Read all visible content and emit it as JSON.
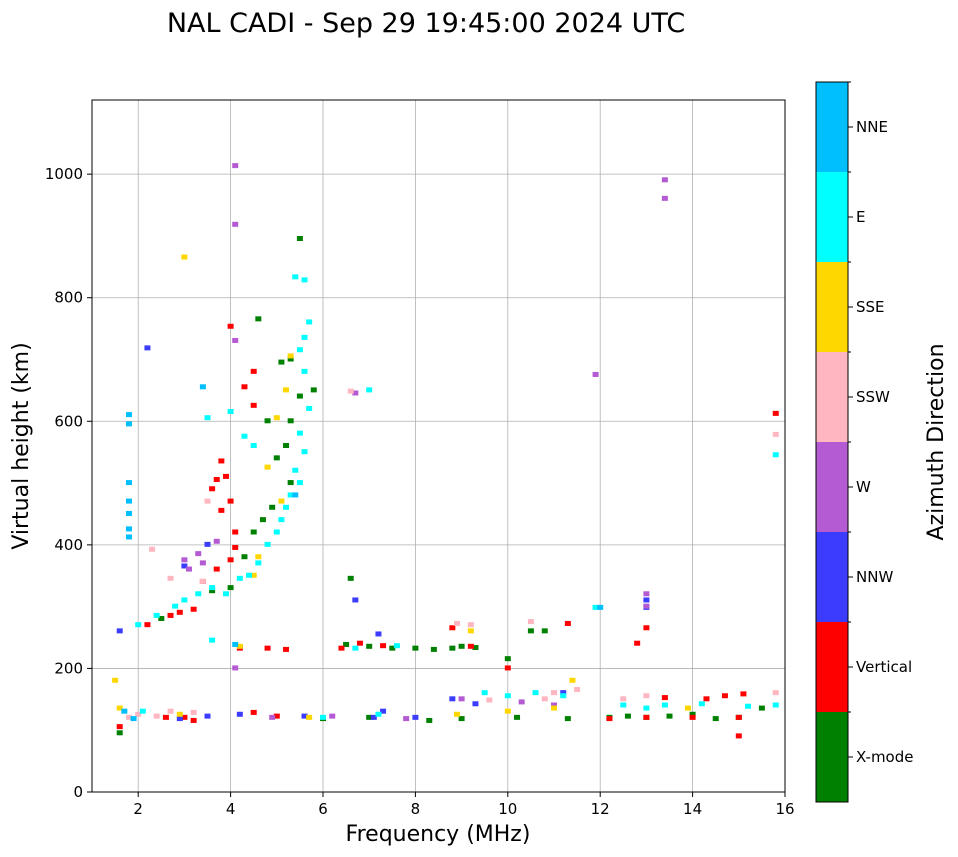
{
  "chart_data": {
    "type": "scatter",
    "title": "NAL CADI - Sep 29 19:45:00 2024 UTC",
    "xlabel": "Frequency (MHz)",
    "ylabel": "Virtual height (km)",
    "xlim": [
      1,
      16
    ],
    "ylim": [
      0,
      1120
    ],
    "xticks": [
      2,
      4,
      6,
      8,
      10,
      12,
      14,
      16
    ],
    "yticks": [
      0,
      200,
      400,
      600,
      800,
      1000
    ],
    "grid": true,
    "colorbar": {
      "title": "Azimuth Direction",
      "categories": [
        {
          "name": "X-mode",
          "color": "#008000"
        },
        {
          "name": "Vertical",
          "color": "#ff0000"
        },
        {
          "name": "NNW",
          "color": "#3c3cff"
        },
        {
          "name": "W",
          "color": "#b45ad2"
        },
        {
          "name": "SSW",
          "color": "#ffb6c1"
        },
        {
          "name": "SSE",
          "color": "#ffd700"
        },
        {
          "name": "E",
          "color": "#00ffff"
        },
        {
          "name": "NNE",
          "color": "#00bfff"
        }
      ]
    },
    "series": [
      {
        "name": "X-mode",
        "points": [
          [
            5.1,
            695
          ],
          [
            5.3,
            700
          ],
          [
            5.5,
            640
          ],
          [
            5.3,
            600
          ],
          [
            5.2,
            560
          ],
          [
            5.0,
            540
          ],
          [
            5.3,
            500
          ],
          [
            4.9,
            460
          ],
          [
            4.7,
            440
          ],
          [
            4.5,
            420
          ],
          [
            4.3,
            380
          ],
          [
            4.0,
            330
          ],
          [
            3.6,
            325
          ],
          [
            2.5,
            280
          ],
          [
            1.6,
            95
          ],
          [
            4.6,
            765
          ],
          [
            5.5,
            895
          ],
          [
            6.6,
            345
          ],
          [
            6.5,
            238
          ],
          [
            7.0,
            235
          ],
          [
            7.5,
            232
          ],
          [
            8.0,
            232
          ],
          [
            8.4,
            230
          ],
          [
            8.8,
            232
          ],
          [
            9.0,
            235
          ],
          [
            9.3,
            233
          ],
          [
            10.0,
            215
          ],
          [
            10.5,
            260
          ],
          [
            10.8,
            260
          ],
          [
            12.2,
            120
          ],
          [
            12.6,
            122
          ],
          [
            13.0,
            120
          ],
          [
            13.5,
            122
          ],
          [
            14.0,
            125
          ],
          [
            14.5,
            118
          ],
          [
            15.0,
            120
          ],
          [
            15.5,
            135
          ],
          [
            8.3,
            115
          ],
          [
            9.0,
            118
          ],
          [
            10.2,
            120
          ],
          [
            11.3,
            118
          ],
          [
            6.0,
            118
          ],
          [
            7.0,
            120
          ],
          [
            5.8,
            650
          ],
          [
            4.8,
            600
          ]
        ]
      },
      {
        "name": "Vertical",
        "points": [
          [
            4.0,
            753
          ],
          [
            4.3,
            655
          ],
          [
            4.5,
            625
          ],
          [
            3.8,
            535
          ],
          [
            3.9,
            510
          ],
          [
            3.7,
            505
          ],
          [
            3.6,
            490
          ],
          [
            4.0,
            470
          ],
          [
            3.8,
            455
          ],
          [
            4.1,
            420
          ],
          [
            4.1,
            395
          ],
          [
            4.0,
            375
          ],
          [
            3.7,
            360
          ],
          [
            3.4,
            340
          ],
          [
            3.2,
            295
          ],
          [
            2.9,
            290
          ],
          [
            2.7,
            285
          ],
          [
            2.2,
            270
          ],
          [
            1.6,
            105
          ],
          [
            4.2,
            232
          ],
          [
            4.8,
            232
          ],
          [
            5.2,
            230
          ],
          [
            6.4,
            232
          ],
          [
            6.8,
            240
          ],
          [
            7.3,
            236
          ],
          [
            8.8,
            265
          ],
          [
            9.2,
            235
          ],
          [
            10.0,
            200
          ],
          [
            11.3,
            272
          ],
          [
            12.8,
            240
          ],
          [
            13.0,
            265
          ],
          [
            13.4,
            152
          ],
          [
            14.3,
            150
          ],
          [
            14.7,
            155
          ],
          [
            15.1,
            158
          ],
          [
            15.0,
            90
          ],
          [
            15.8,
            612
          ],
          [
            12.2,
            118
          ],
          [
            13.0,
            120
          ],
          [
            14.0,
            120
          ],
          [
            15.0,
            120
          ],
          [
            4.5,
            128
          ],
          [
            5.0,
            122
          ],
          [
            3.2,
            115
          ],
          [
            2.6,
            120
          ],
          [
            3.0,
            120
          ],
          [
            4.5,
            680
          ]
        ]
      },
      {
        "name": "NNW",
        "points": [
          [
            2.2,
            718
          ],
          [
            1.6,
            260
          ],
          [
            3.0,
            365
          ],
          [
            3.5,
            400
          ],
          [
            6.7,
            310
          ],
          [
            7.2,
            255
          ],
          [
            7.3,
            130
          ],
          [
            8.8,
            150
          ],
          [
            9.3,
            142
          ],
          [
            11.2,
            160
          ],
          [
            13.0,
            298
          ],
          [
            13.0,
            310
          ],
          [
            4.2,
            125
          ],
          [
            5.6,
            122
          ],
          [
            7.1,
            120
          ],
          [
            8.0,
            120
          ],
          [
            2.9,
            118
          ],
          [
            3.5,
            122
          ]
        ]
      },
      {
        "name": "W",
        "points": [
          [
            4.1,
            1013
          ],
          [
            4.1,
            918
          ],
          [
            4.1,
            730
          ],
          [
            6.7,
            645
          ],
          [
            11.9,
            675
          ],
          [
            13.4,
            990
          ],
          [
            13.4,
            960
          ],
          [
            13.0,
            320
          ],
          [
            13.0,
            300
          ],
          [
            3.1,
            360
          ],
          [
            3.0,
            375
          ],
          [
            3.3,
            385
          ],
          [
            3.7,
            405
          ],
          [
            3.4,
            370
          ],
          [
            4.1,
            200
          ],
          [
            9.0,
            150
          ],
          [
            10.3,
            145
          ],
          [
            11.0,
            140
          ],
          [
            6.2,
            122
          ],
          [
            7.8,
            118
          ],
          [
            4.9,
            120
          ]
        ]
      },
      {
        "name": "SSW",
        "points": [
          [
            15.8,
            578
          ],
          [
            2.7,
            345
          ],
          [
            3.4,
            340
          ],
          [
            2.3,
            392
          ],
          [
            3.5,
            470
          ],
          [
            6.6,
            648
          ],
          [
            8.9,
            272
          ],
          [
            9.2,
            270
          ],
          [
            10.5,
            275
          ],
          [
            11.0,
            160
          ],
          [
            11.5,
            165
          ],
          [
            12.5,
            150
          ],
          [
            13.0,
            155
          ],
          [
            15.8,
            160
          ],
          [
            1.8,
            120
          ],
          [
            2.0,
            125
          ],
          [
            2.4,
            122
          ],
          [
            2.7,
            130
          ],
          [
            3.2,
            128
          ],
          [
            9.6,
            148
          ],
          [
            10.8,
            150
          ]
        ]
      },
      {
        "name": "SSE",
        "points": [
          [
            3.0,
            865
          ],
          [
            5.3,
            705
          ],
          [
            5.2,
            650
          ],
          [
            5.0,
            605
          ],
          [
            4.8,
            525
          ],
          [
            5.1,
            470
          ],
          [
            4.6,
            380
          ],
          [
            4.5,
            350
          ],
          [
            1.5,
            180
          ],
          [
            1.6,
            135
          ],
          [
            4.2,
            235
          ],
          [
            9.2,
            260
          ],
          [
            10.0,
            130
          ],
          [
            11.0,
            135
          ],
          [
            11.4,
            180
          ],
          [
            13.9,
            135
          ],
          [
            2.9,
            125
          ],
          [
            5.7,
            120
          ],
          [
            8.9,
            125
          ]
        ]
      },
      {
        "name": "E",
        "points": [
          [
            5.6,
            828
          ],
          [
            5.4,
            833
          ],
          [
            5.7,
            760
          ],
          [
            5.6,
            735
          ],
          [
            5.5,
            715
          ],
          [
            5.6,
            680
          ],
          [
            5.7,
            620
          ],
          [
            5.5,
            580
          ],
          [
            5.6,
            550
          ],
          [
            5.4,
            520
          ],
          [
            5.5,
            500
          ],
          [
            5.3,
            480
          ],
          [
            5.2,
            460
          ],
          [
            5.1,
            440
          ],
          [
            5.0,
            420
          ],
          [
            4.8,
            400
          ],
          [
            4.6,
            370
          ],
          [
            4.4,
            350
          ],
          [
            4.2,
            345
          ],
          [
            3.9,
            320
          ],
          [
            3.6,
            330
          ],
          [
            3.3,
            320
          ],
          [
            3.0,
            310
          ],
          [
            2.8,
            300
          ],
          [
            2.4,
            285
          ],
          [
            2.0,
            270
          ],
          [
            4.0,
            615
          ],
          [
            4.3,
            575
          ],
          [
            4.5,
            560
          ],
          [
            3.5,
            605
          ],
          [
            7.0,
            650
          ],
          [
            11.9,
            298
          ],
          [
            15.8,
            545
          ],
          [
            12.5,
            140
          ],
          [
            13.0,
            135
          ],
          [
            13.4,
            140
          ],
          [
            14.2,
            142
          ],
          [
            15.2,
            138
          ],
          [
            15.8,
            140
          ],
          [
            9.5,
            160
          ],
          [
            10.0,
            155
          ],
          [
            10.6,
            160
          ],
          [
            11.2,
            155
          ],
          [
            6.7,
            232
          ],
          [
            7.6,
            236
          ],
          [
            2.1,
            130
          ],
          [
            3.6,
            245
          ],
          [
            6.0,
            120
          ],
          [
            7.2,
            125
          ]
        ]
      },
      {
        "name": "NNE",
        "points": [
          [
            1.8,
            610
          ],
          [
            1.8,
            595
          ],
          [
            1.8,
            500
          ],
          [
            1.8,
            470
          ],
          [
            1.8,
            450
          ],
          [
            1.8,
            425
          ],
          [
            1.8,
            412
          ],
          [
            3.4,
            655
          ],
          [
            5.4,
            480
          ],
          [
            1.7,
            130
          ],
          [
            1.9,
            118
          ],
          [
            4.1,
            238
          ],
          [
            12.0,
            298
          ]
        ]
      }
    ]
  }
}
